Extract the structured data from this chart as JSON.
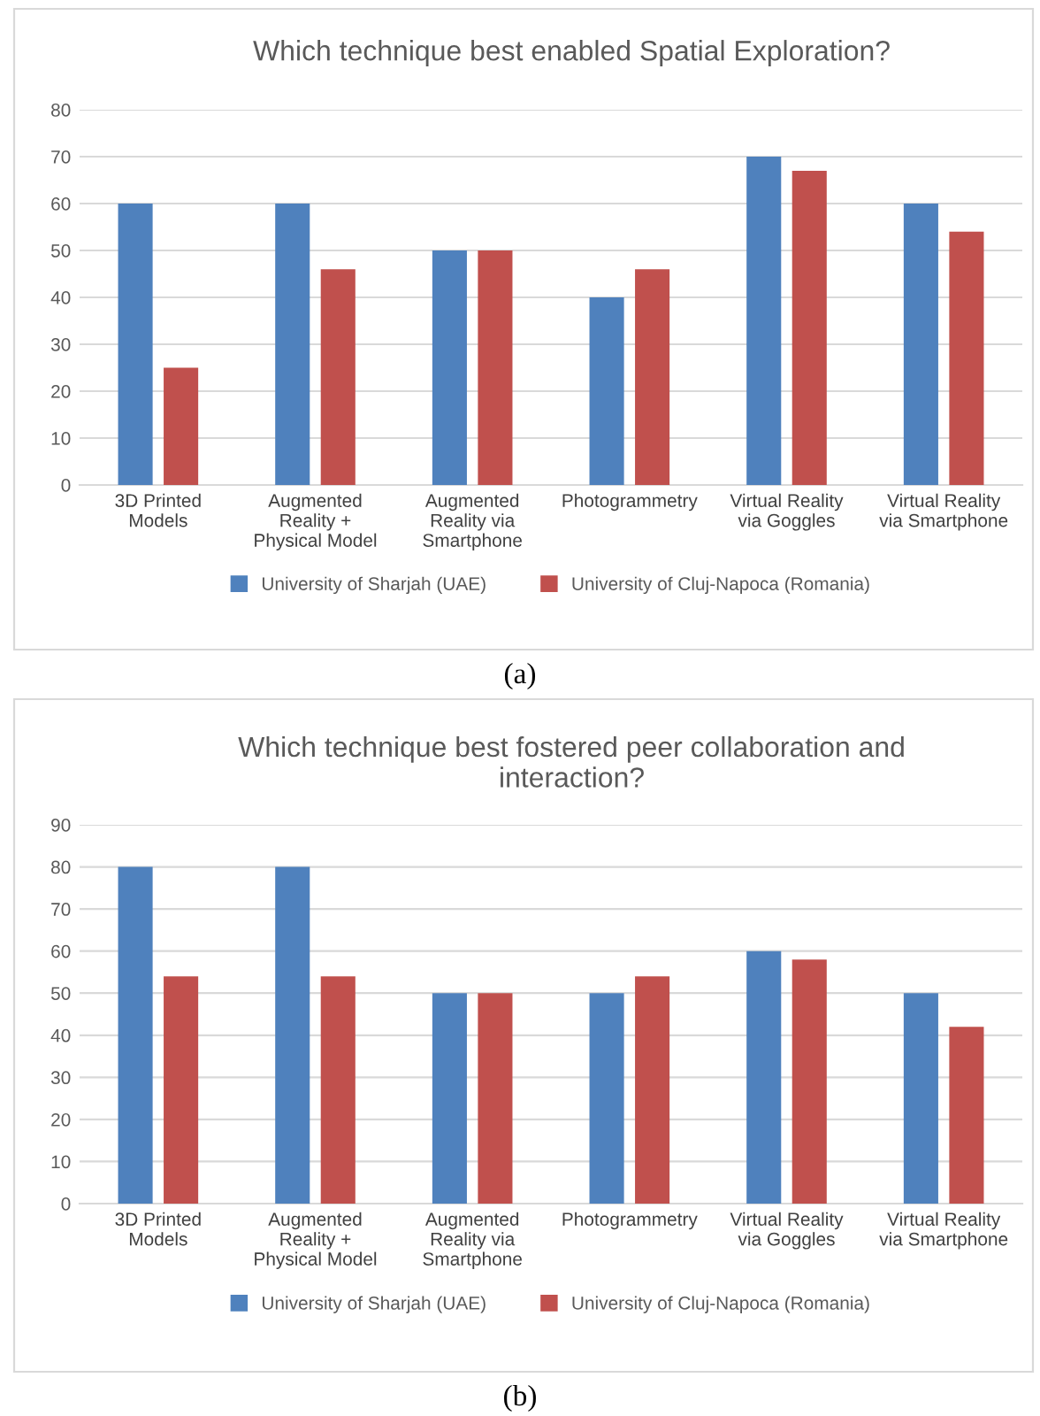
{
  "chart_data": [
    {
      "type": "bar",
      "title": "Which technique best enabled Spatial Exploration?",
      "categories": [
        "3D Printed Models",
        "Augmented Reality + Physical Model",
        "Augmented Reality via Smartphone",
        "Photogrammetry",
        "Virtual Reality via Goggles",
        "Virtual Reality via Smartphone"
      ],
      "series": [
        {
          "name": "University of Sharjah (UAE)",
          "color": "#4f81bd",
          "values": [
            60,
            60,
            50,
            40,
            70,
            60
          ]
        },
        {
          "name": "University of Cluj-Napoca (Romania)",
          "color": "#c0504d",
          "values": [
            25,
            46,
            50,
            46,
            67,
            54
          ]
        }
      ],
      "ylim": [
        0,
        80
      ],
      "yticks": [
        0,
        10,
        20,
        30,
        40,
        50,
        60,
        70,
        80
      ],
      "grid": "y",
      "legend": "bottom",
      "annotations": [
        "(a)"
      ]
    },
    {
      "type": "bar",
      "title": "Which technique best fostered peer collaboration and interaction?",
      "categories": [
        "3D Printed Models",
        "Augmented Reality + Physical Model",
        "Augmented Reality via Smartphone",
        "Photogrammetry",
        "Virtual Reality via Goggles",
        "Virtual Reality via Smartphone"
      ],
      "series": [
        {
          "name": "University of Sharjah (UAE)",
          "color": "#4f81bd",
          "values": [
            80,
            80,
            50,
            50,
            60,
            50
          ]
        },
        {
          "name": "University of Cluj-Napoca (Romania)",
          "color": "#c0504d",
          "values": [
            54,
            54,
            50,
            54,
            58,
            42
          ]
        }
      ],
      "ylim": [
        0,
        90
      ],
      "yticks": [
        0,
        10,
        20,
        30,
        40,
        50,
        60,
        70,
        80,
        90
      ],
      "grid": "y",
      "legend": "bottom",
      "annotations": [
        "(b)"
      ]
    }
  ]
}
